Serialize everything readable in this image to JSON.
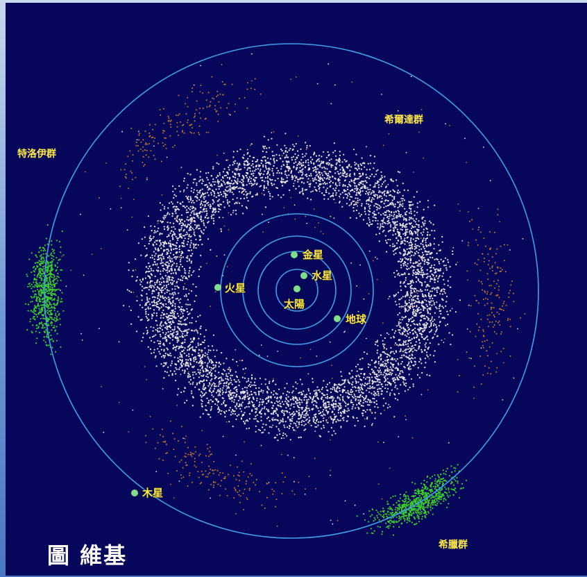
{
  "colors": {
    "background": "#06075a",
    "orbit": "#3fa0e6",
    "planet": "#7ee08a",
    "label": "#ffe94a",
    "main_belt": "#e8e8e8",
    "trojans": "#3ccf2a",
    "hildas": "#c97a2a"
  },
  "sun": {
    "label": "太陽"
  },
  "planets": [
    {
      "id": "mercury",
      "label": "水星"
    },
    {
      "id": "venus",
      "label": "金星"
    },
    {
      "id": "earth",
      "label": "地球"
    },
    {
      "id": "mars",
      "label": "火星"
    },
    {
      "id": "jupiter",
      "label": "木星"
    }
  ],
  "groups": {
    "hildas": "希爾達群",
    "trojans": "特洛伊群",
    "greeks": "希臘群"
  },
  "caption": "圖 維基"
}
